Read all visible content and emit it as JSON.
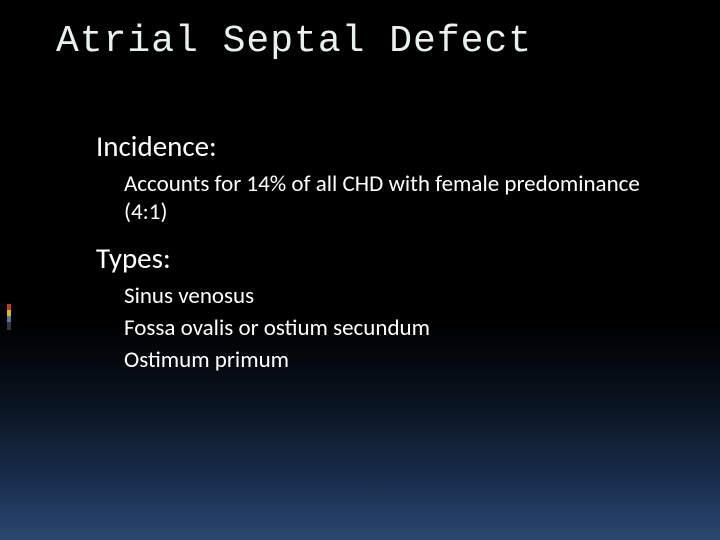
{
  "slide": {
    "title": "Atrial Septal Defect",
    "title_color": "#e8f0f0",
    "title_font_family": "Consolas, Courier New, monospace",
    "title_fontsize": 38,
    "body_color": "#ffffff",
    "body_font_family": "Candara, Calibri, Segoe UI, sans-serif",
    "background_gradient": {
      "stops": [
        "#000000",
        "#000000",
        "#0a1420",
        "#1a3050",
        "#2a4870"
      ],
      "positions": [
        0,
        60,
        75,
        90,
        100
      ]
    },
    "accent_bar": {
      "segments": [
        {
          "color": "#c03828",
          "height": 6
        },
        {
          "color": "#d8b830",
          "height": 6
        },
        {
          "color": "#5878a0",
          "height": 6
        },
        {
          "color": "#383838",
          "height": 8
        }
      ]
    },
    "sections": [
      {
        "heading": "Incidence:",
        "heading_fontsize": 29,
        "items": [
          "Accounts for 14% of all CHD with female predominance (4:1)"
        ],
        "item_fontsize": 23
      },
      {
        "heading": "Types:",
        "heading_fontsize": 29,
        "items": [
          "Sinus venosus",
          "Fossa ovalis or ostium secundum",
          "Ostimum primum"
        ],
        "item_fontsize": 23
      }
    ]
  }
}
